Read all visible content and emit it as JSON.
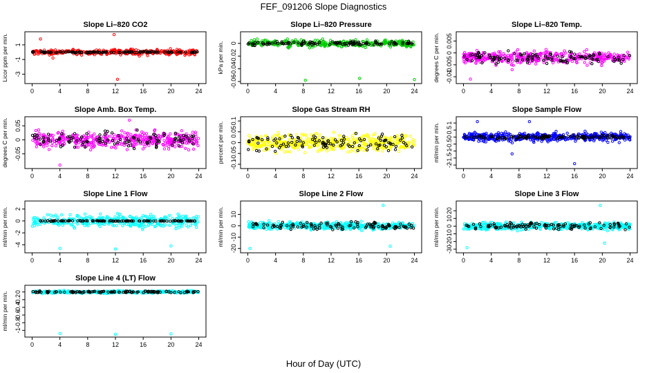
{
  "figure": {
    "title": "FEF_091206  Slope Diagnostics",
    "xlabel": "Hour of Day (UTC)"
  },
  "chart_data": [
    {
      "type": "scatter",
      "title": "Slope Li–820 CO2",
      "ylabel": "Licor ppm per min.",
      "xlim": [
        0,
        24
      ],
      "ylim": [
        -4,
        2.5
      ],
      "xticks": [
        0,
        4,
        8,
        12,
        16,
        20,
        24
      ],
      "yticks": [
        -3,
        -1,
        1
      ],
      "series": [
        {
          "color": "#ff0000",
          "center": 0,
          "spread": 0.35,
          "count": 330,
          "outliers": [
            [
              1.2,
              1.8
            ],
            [
              11.8,
              2.4
            ],
            [
              12.3,
              -3.7
            ],
            [
              3,
              -0.8
            ]
          ]
        },
        {
          "color": "#000000",
          "center": 0,
          "spread": 0.08,
          "count": 110
        }
      ]
    },
    {
      "type": "scatter",
      "title": "Slope Li–820 Pressure",
      "ylabel": "kPa per min.",
      "xlim": [
        0,
        24
      ],
      "ylim": [
        -0.06,
        0.015
      ],
      "xticks": [
        0,
        4,
        8,
        12,
        16,
        20,
        24
      ],
      "yticks": [
        -0.06,
        -0.04,
        -0.02,
        0
      ],
      "series": [
        {
          "color": "#00cc00",
          "center": 0,
          "spread": 0.005,
          "count": 330,
          "outliers": [
            [
              8.3,
              -0.058
            ],
            [
              16.1,
              -0.055
            ],
            [
              24,
              -0.057
            ]
          ]
        },
        {
          "color": "#000000",
          "center": 0,
          "spread": 0.003,
          "count": 110
        }
      ]
    },
    {
      "type": "scatter",
      "title": "Slope Li–820 Temp.",
      "ylabel": "degrees C per min.",
      "xlim": [
        0,
        24
      ],
      "ylim": [
        -0.012,
        0.008
      ],
      "xticks": [
        0,
        4,
        8,
        12,
        16,
        20,
        24
      ],
      "yticks": [
        -0.01,
        -0.005,
        0,
        0.005
      ],
      "series": [
        {
          "color": "#ff00ff",
          "center": -0.002,
          "spread": 0.0025,
          "count": 420,
          "outliers": [
            [
              1,
              -0.011
            ],
            [
              7,
              -0.007
            ]
          ]
        },
        {
          "color": "#000000",
          "center": -0.002,
          "spread": 0.0022,
          "count": 110
        }
      ]
    },
    {
      "type": "scatter",
      "title": "Slope Amb. Box Temp.",
      "ylabel": "degrees C per min.",
      "xlim": [
        0,
        24
      ],
      "ylim": [
        -0.095,
        0.075
      ],
      "xticks": [
        0,
        4,
        8,
        12,
        16,
        20,
        24
      ],
      "yticks": [
        -0.05,
        0,
        0.05
      ],
      "series": [
        {
          "color": "#ff00ff",
          "center": 0,
          "spread": 0.028,
          "count": 450,
          "outliers": [
            [
              4,
              -0.09
            ],
            [
              14,
              0.07
            ]
          ]
        },
        {
          "color": "#000000",
          "center": 0,
          "spread": 0.028,
          "count": 110
        }
      ]
    },
    {
      "type": "scatter",
      "title": "Slope Gas Stream RH",
      "ylabel": "percent per min.",
      "xlim": [
        0,
        24
      ],
      "ylim": [
        -0.11,
        0.11
      ],
      "xticks": [
        0,
        4,
        8,
        12,
        16,
        20,
        24
      ],
      "yticks": [
        -0.1,
        -0.05,
        0,
        0.05,
        0.1
      ],
      "series": [
        {
          "color": "#ffff00",
          "center": 0,
          "spread": 0.035,
          "count": 450,
          "outliers": []
        },
        {
          "color": "#000000",
          "center": 0,
          "spread": 0.035,
          "count": 110
        }
      ]
    },
    {
      "type": "scatter",
      "title": "Slope Sample Flow",
      "ylabel": "ml/min per min.",
      "xlim": [
        0,
        24
      ],
      "ylim": [
        -2.1,
        1.3
      ],
      "xticks": [
        0,
        4,
        8,
        12,
        16,
        20,
        24
      ],
      "yticks": [
        -2,
        -1.5,
        -1,
        -0.5,
        0,
        0.5,
        1
      ],
      "series": [
        {
          "color": "#0000ff",
          "center": 0,
          "spread": 0.3,
          "count": 450,
          "outliers": [
            [
              2,
              1.1
            ],
            [
              9.5,
              1.1
            ],
            [
              16,
              -1.9
            ],
            [
              7,
              -1.2
            ]
          ]
        },
        {
          "color": "#000000",
          "center": 0,
          "spread": 0.12,
          "count": 110
        }
      ]
    },
    {
      "type": "scatter",
      "title": "Slope Line 1 Flow",
      "ylabel": "ml/min per min.",
      "xlim": [
        0,
        24
      ],
      "ylim": [
        -5,
        3
      ],
      "xticks": [
        0,
        4,
        8,
        12,
        16,
        20,
        24
      ],
      "yticks": [
        -4,
        -2,
        0,
        2
      ],
      "series": [
        {
          "color": "#00ffff",
          "center": 0,
          "spread": 1.0,
          "count": 350,
          "outliers": [
            [
              4,
              -4.6
            ],
            [
              12,
              -4.7
            ],
            [
              20,
              -4.2
            ]
          ]
        },
        {
          "color": "#000000",
          "center": 0,
          "spread": 0.05,
          "count": 110
        }
      ]
    },
    {
      "type": "scatter",
      "title": "Slope Line 2 Flow",
      "ylabel": "ml/min per min.",
      "xlim": [
        0,
        24
      ],
      "ylim": [
        -22,
        20
      ],
      "xticks": [
        0,
        4,
        8,
        12,
        16,
        20,
        24
      ],
      "yticks": [
        -20,
        -10,
        0,
        10
      ],
      "series": [
        {
          "color": "#00ffff",
          "center": 0,
          "spread": 3.0,
          "count": 450,
          "outliers": [
            [
              0.3,
              -20
            ],
            [
              19.5,
              18
            ],
            [
              20.5,
              -18
            ]
          ]
        },
        {
          "color": "#000000",
          "center": 0,
          "spread": 3.0,
          "count": 110
        }
      ]
    },
    {
      "type": "scatter",
      "title": "Slope Line 3 Flow",
      "ylabel": "ml/min per min.",
      "xlim": [
        0,
        24
      ],
      "ylim": [
        -32,
        30
      ],
      "xticks": [
        0,
        4,
        8,
        12,
        16,
        20,
        24
      ],
      "yticks": [
        -30,
        -20,
        -10,
        0,
        10,
        20
      ],
      "series": [
        {
          "color": "#00ffff",
          "center": 0,
          "spread": 4.5,
          "count": 450,
          "outliers": [
            [
              0.5,
              -28
            ],
            [
              19.7,
              27
            ],
            [
              20.3,
              -22
            ]
          ]
        },
        {
          "color": "#000000",
          "center": 0,
          "spread": 4.0,
          "count": 110
        }
      ]
    },
    {
      "type": "scatter",
      "title": "Slope Line 4 (LT) Flow",
      "ylabel": "ml/min per min.",
      "xlim": [
        0,
        24
      ],
      "ylim": [
        -1.12,
        0.12
      ],
      "xticks": [
        0,
        4,
        8,
        12,
        16,
        20,
        24
      ],
      "yticks": [
        -1,
        -0.8,
        -0.6,
        -0.4,
        -0.2,
        0
      ],
      "series": [
        {
          "color": "#00ffff",
          "center": 0,
          "spread": 0.03,
          "count": 350,
          "outliers": [
            [
              4,
              -1.08
            ],
            [
              12,
              -1.1
            ],
            [
              20,
              -1.09
            ]
          ]
        },
        {
          "color": "#000000",
          "center": 0,
          "spread": 0.025,
          "count": 110
        }
      ]
    }
  ]
}
